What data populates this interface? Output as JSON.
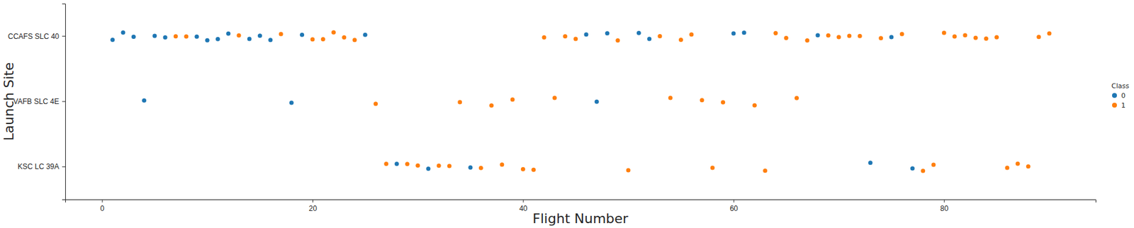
{
  "chart_data": {
    "type": "scatter",
    "x_label": "Flight Number",
    "y_label": "Launch Site",
    "categories": [
      "CCAFS SLC 40",
      "VAFB SLC 4E",
      "KSC LC 39A"
    ],
    "xlim": [
      -3.5,
      94.4
    ],
    "xticks": [
      0,
      20,
      40,
      60,
      80
    ],
    "legend": "right",
    "legend_title": "Class",
    "marker": "circle",
    "series": [
      {
        "name": "0",
        "color": "#1f77b4",
        "x": [
          1,
          2,
          3,
          4,
          5,
          6,
          9,
          10,
          11,
          12,
          14,
          15,
          16,
          18,
          19,
          25,
          28,
          31,
          35,
          46,
          47,
          48,
          51,
          52,
          60,
          61,
          68,
          73,
          75,
          77
        ],
        "values": [
          "CCAFS SLC 40",
          "CCAFS SLC 40",
          "CCAFS SLC 40",
          "VAFB SLC 4E",
          "CCAFS SLC 40",
          "CCAFS SLC 40",
          "CCAFS SLC 40",
          "CCAFS SLC 40",
          "CCAFS SLC 40",
          "CCAFS SLC 40",
          "CCAFS SLC 40",
          "CCAFS SLC 40",
          "CCAFS SLC 40",
          "VAFB SLC 4E",
          "CCAFS SLC 40",
          "CCAFS SLC 40",
          "KSC LC 39A",
          "KSC LC 39A",
          "KSC LC 39A",
          "CCAFS SLC 40",
          "VAFB SLC 4E",
          "CCAFS SLC 40",
          "CCAFS SLC 40",
          "CCAFS SLC 40",
          "CCAFS SLC 40",
          "CCAFS SLC 40",
          "CCAFS SLC 40",
          "KSC LC 39A",
          "CCAFS SLC 40",
          "KSC LC 39A"
        ]
      },
      {
        "name": "1",
        "color": "#ff7f0e",
        "x": [
          7,
          8,
          13,
          17,
          20,
          21,
          22,
          23,
          24,
          26,
          27,
          29,
          30,
          32,
          33,
          34,
          36,
          37,
          38,
          39,
          40,
          41,
          42,
          43,
          44,
          45,
          49,
          50,
          53,
          54,
          55,
          56,
          57,
          58,
          59,
          62,
          63,
          64,
          65,
          66,
          67,
          69,
          70,
          71,
          72,
          74,
          76,
          78,
          79,
          80,
          81,
          82,
          83,
          84,
          85,
          86,
          87,
          88,
          89,
          90
        ],
        "values": [
          "CCAFS SLC 40",
          "CCAFS SLC 40",
          "CCAFS SLC 40",
          "CCAFS SLC 40",
          "CCAFS SLC 40",
          "CCAFS SLC 40",
          "CCAFS SLC 40",
          "CCAFS SLC 40",
          "CCAFS SLC 40",
          "VAFB SLC 4E",
          "KSC LC 39A",
          "KSC LC 39A",
          "KSC LC 39A",
          "KSC LC 39A",
          "KSC LC 39A",
          "VAFB SLC 4E",
          "KSC LC 39A",
          "VAFB SLC 4E",
          "KSC LC 39A",
          "VAFB SLC 4E",
          "KSC LC 39A",
          "KSC LC 39A",
          "CCAFS SLC 40",
          "VAFB SLC 4E",
          "CCAFS SLC 40",
          "CCAFS SLC 40",
          "CCAFS SLC 40",
          "KSC LC 39A",
          "CCAFS SLC 40",
          "VAFB SLC 4E",
          "CCAFS SLC 40",
          "CCAFS SLC 40",
          "VAFB SLC 4E",
          "KSC LC 39A",
          "VAFB SLC 4E",
          "VAFB SLC 4E",
          "KSC LC 39A",
          "CCAFS SLC 40",
          "CCAFS SLC 40",
          "VAFB SLC 4E",
          "CCAFS SLC 40",
          "CCAFS SLC 40",
          "CCAFS SLC 40",
          "CCAFS SLC 40",
          "CCAFS SLC 40",
          "CCAFS SLC 40",
          "CCAFS SLC 40",
          "KSC LC 39A",
          "KSC LC 39A",
          "CCAFS SLC 40",
          "CCAFS SLC 40",
          "CCAFS SLC 40",
          "CCAFS SLC 40",
          "CCAFS SLC 40",
          "CCAFS SLC 40",
          "KSC LC 39A",
          "KSC LC 39A",
          "KSC LC 39A",
          "CCAFS SLC 40",
          "CCAFS SLC 40"
        ]
      }
    ]
  }
}
